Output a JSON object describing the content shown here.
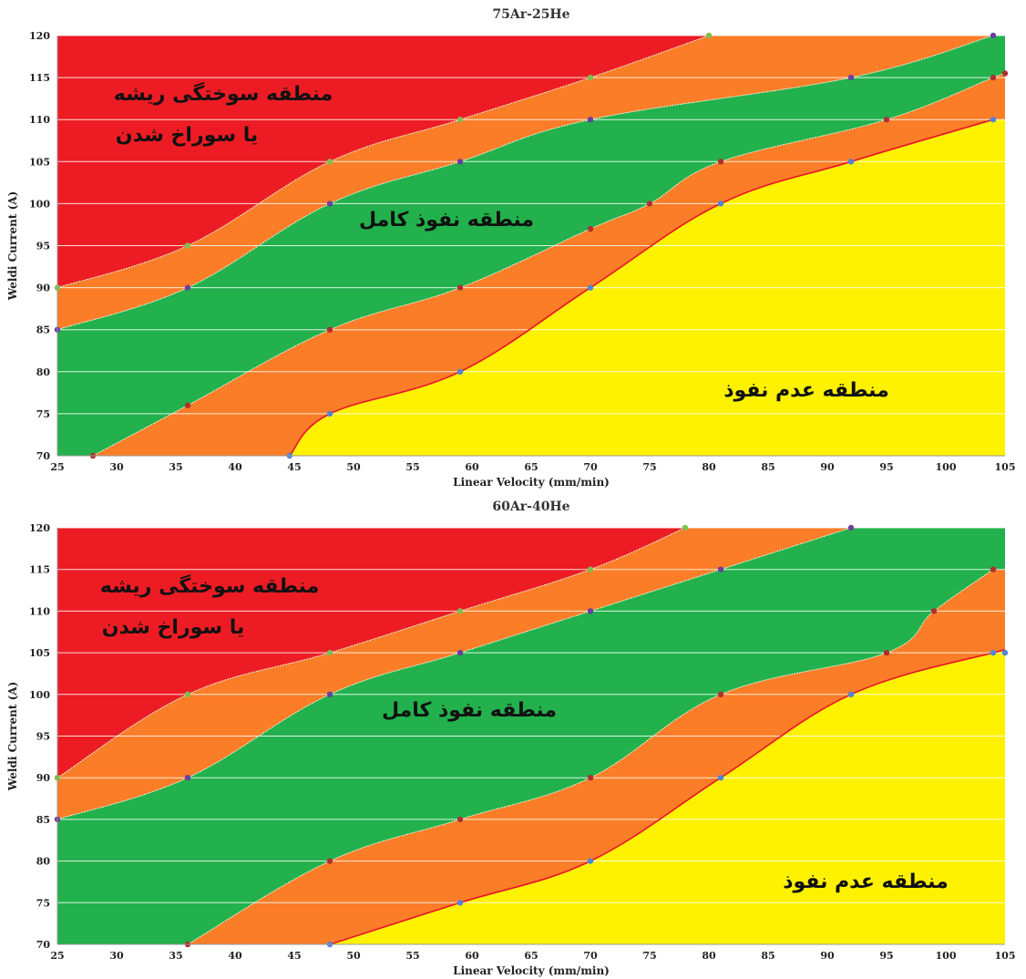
{
  "colors": {
    "burn": "#ed1c24",
    "upper_band": "#fb7d27",
    "full": "#22b14c",
    "lower_band": "#fb7d27",
    "none": "#fff200",
    "grid": "#ffffff",
    "boundary_red": "#e8132a"
  },
  "chart_data": [
    {
      "type": "area",
      "title": "75Ar-25He",
      "xlabel": "Linear Velocity (mm/min)",
      "ylabel": "Weldi Current (A)",
      "xlim": [
        25,
        105
      ],
      "ylim": [
        70,
        120
      ],
      "xticks": [
        "25",
        "30",
        "35",
        "40",
        "45",
        "50",
        "55",
        "60",
        "65",
        "70",
        "75",
        "80",
        "85",
        "90",
        "95",
        "100",
        "105"
      ],
      "yticks": [
        "70",
        "75",
        "80",
        "85",
        "90",
        "95",
        "100",
        "105",
        "110",
        "115",
        "120"
      ],
      "grid": "horizontal",
      "region_labels": {
        "burn_line1": "منطقه سوختگی ریشه",
        "burn_line2": "یا سوراخ شدن",
        "full": "منطقه نفوذ کامل",
        "none": "منطقه عدم نفوذ"
      },
      "boundaries": [
        {
          "region": "burn",
          "points": [
            [
              25,
              90
            ],
            [
              36,
              95
            ],
            [
              48,
              105
            ],
            [
              59,
              110
            ],
            [
              70,
              115
            ],
            [
              80,
              120
            ]
          ]
        },
        {
          "region": "upper_band",
          "points": [
            [
              25,
              85
            ],
            [
              36,
              90
            ],
            [
              48,
              100
            ],
            [
              59,
              105
            ],
            [
              70,
              110
            ],
            [
              92,
              115
            ],
            [
              104,
              120
            ]
          ]
        },
        {
          "region": "full",
          "points": [
            [
              28,
              70
            ],
            [
              36,
              76
            ],
            [
              48,
              85
            ],
            [
              59,
              90
            ],
            [
              70,
              97
            ],
            [
              75,
              100
            ],
            [
              81,
              105
            ],
            [
              95,
              110
            ],
            [
              104,
              115
            ],
            [
              105,
              115.5
            ]
          ]
        },
        {
          "region": "lower_band",
          "points": [
            [
              44.6,
              70
            ],
            [
              48,
              75
            ],
            [
              59,
              80
            ],
            [
              70,
              90
            ],
            [
              81,
              100
            ],
            [
              92,
              105
            ],
            [
              104,
              110
            ]
          ]
        }
      ]
    },
    {
      "type": "area",
      "title": "60Ar-40He",
      "xlabel": "Linear Velocity (mm/min)",
      "ylabel": "Weldi Current (A)",
      "xlim": [
        25,
        105
      ],
      "ylim": [
        70,
        120
      ],
      "xticks": [
        "25",
        "30",
        "35",
        "40",
        "45",
        "50",
        "55",
        "60",
        "65",
        "70",
        "75",
        "80",
        "85",
        "90",
        "95",
        "100",
        "105"
      ],
      "yticks": [
        "70",
        "75",
        "80",
        "85",
        "90",
        "95",
        "100",
        "105",
        "110",
        "115",
        "120"
      ],
      "grid": "horizontal",
      "region_labels": {
        "burn_line1": "منطقه سوختگی ریشه",
        "burn_line2": "یا سوراخ شدن",
        "full": "منطقه نفوذ کامل",
        "none": "منطقه عدم نفوذ"
      },
      "boundaries": [
        {
          "region": "burn",
          "points": [
            [
              25,
              90
            ],
            [
              36,
              100
            ],
            [
              48,
              105
            ],
            [
              59,
              110
            ],
            [
              70,
              115
            ],
            [
              78,
              120
            ]
          ]
        },
        {
          "region": "upper_band",
          "points": [
            [
              25,
              85
            ],
            [
              36,
              90
            ],
            [
              48,
              100
            ],
            [
              59,
              105
            ],
            [
              70,
              110
            ],
            [
              81,
              115
            ],
            [
              92,
              120
            ]
          ]
        },
        {
          "region": "full",
          "points": [
            [
              36,
              70
            ],
            [
              48,
              80
            ],
            [
              59,
              85
            ],
            [
              70,
              90
            ],
            [
              81,
              100
            ],
            [
              95,
              105
            ],
            [
              99,
              110
            ],
            [
              104,
              115
            ]
          ]
        },
        {
          "region": "lower_band",
          "points": [
            [
              48,
              70
            ],
            [
              59,
              75
            ],
            [
              70,
              80
            ],
            [
              81,
              90
            ],
            [
              92,
              100
            ],
            [
              104,
              105
            ],
            [
              105,
              105
            ]
          ]
        }
      ]
    }
  ]
}
